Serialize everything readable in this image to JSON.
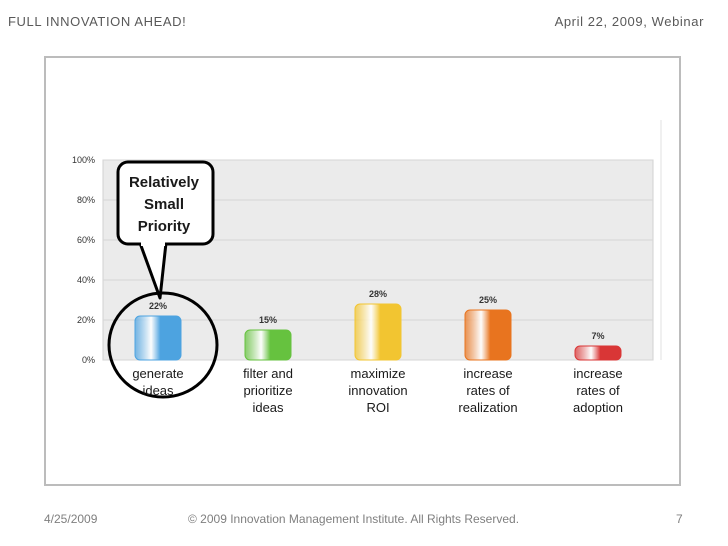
{
  "header": {
    "left_text": "FULL  INNOVATION  AHEAD!",
    "right_text": "April 22, 2009, Webinar"
  },
  "callout": {
    "lines": [
      "Relatively",
      "Small",
      "Priority"
    ]
  },
  "chart_data": {
    "type": "bar",
    "categories": [
      [
        "generate",
        "ideas"
      ],
      [
        "filter and",
        "prioritize",
        "ideas"
      ],
      [
        "maximize",
        "innovation",
        "ROI"
      ],
      [
        "increase",
        "rates of",
        "realization"
      ],
      [
        "increase",
        "rates of",
        "adoption"
      ]
    ],
    "values": [
      22,
      15,
      28,
      25,
      7
    ],
    "value_labels": [
      "22%",
      "15%",
      "28%",
      "25%",
      "7%"
    ],
    "colors": [
      "#4da3e0",
      "#66c23f",
      "#f2c531",
      "#e8741f",
      "#d93636"
    ],
    "yticks": [
      "100%",
      "80%",
      "60%",
      "40%",
      "20%",
      "0%"
    ],
    "ylim": [
      0,
      100
    ],
    "grid": true,
    "legend": "none"
  },
  "footer": {
    "date": "4/25/2009",
    "copyright": "© 2009 Innovation Management Institute. All Rights Reserved.",
    "page": "7"
  }
}
